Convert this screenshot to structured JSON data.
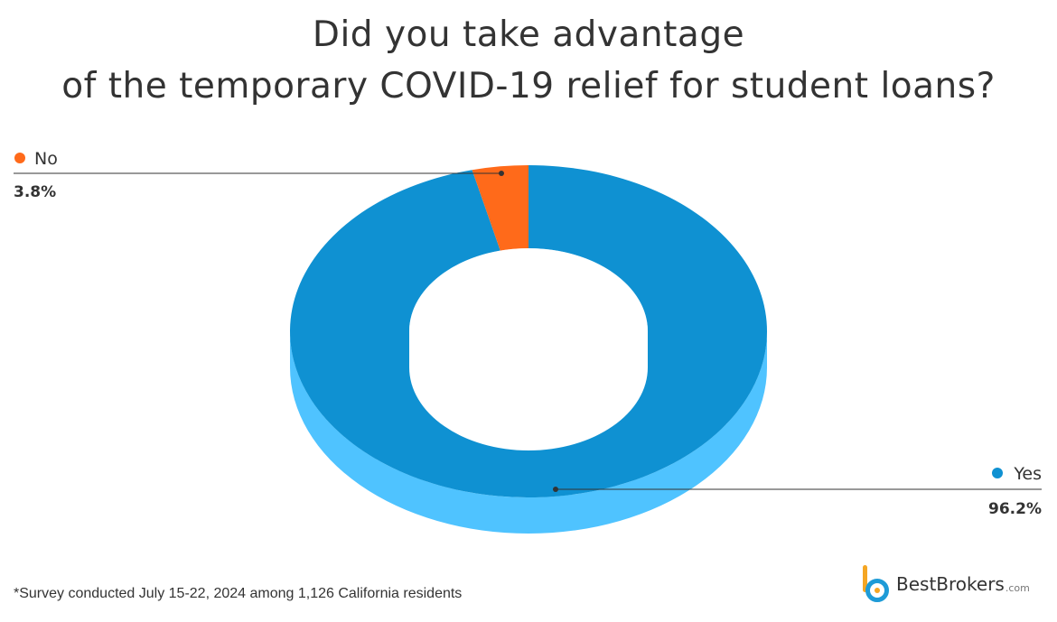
{
  "chart_data": {
    "type": "pie",
    "style": "3d-donut",
    "title_lines": [
      "Did you take advantage",
      "of the temporary COVID-19 relief for student loans?"
    ],
    "slices": [
      {
        "label": "Yes",
        "value": 96.2,
        "value_label": "96.2%",
        "color": "#0f91d2",
        "side_color": "#4fc3ff"
      },
      {
        "label": "No",
        "value": 3.8,
        "value_label": "3.8%",
        "color": "#ff6a1a",
        "side_color": "#ff9a70"
      }
    ],
    "legend_placement": "callouts"
  },
  "footnote": "*Survey conducted July 15-22, 2024 among 1,126 California residents",
  "brand": {
    "name": "BestBrokers",
    "suffix": ".com"
  }
}
